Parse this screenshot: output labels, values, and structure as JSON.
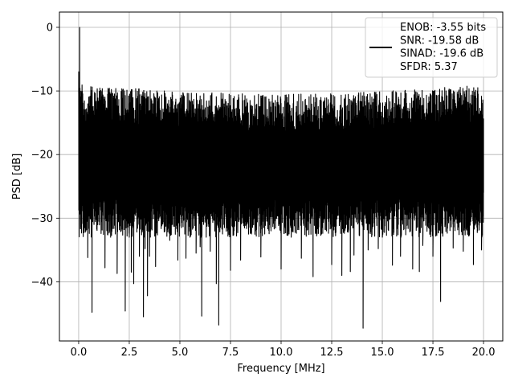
{
  "chart_data": {
    "type": "line",
    "xlabel": "Frequency [MHz]",
    "ylabel": "PSD [dB]",
    "xlim": [
      -0.95,
      20.95
    ],
    "ylim": [
      -49.3,
      2.4
    ],
    "x_ticks": [
      0.0,
      2.5,
      5.0,
      7.5,
      10.0,
      12.5,
      15.0,
      17.5,
      20.0
    ],
    "x_tick_labels": [
      "0.0",
      "2.5",
      "5.0",
      "7.5",
      "10.0",
      "12.5",
      "15.0",
      "17.5",
      "20.0"
    ],
    "y_ticks": [
      0,
      -10,
      -20,
      -30,
      -40
    ],
    "y_tick_labels": [
      "0",
      "−10",
      "−20",
      "−30",
      "−40"
    ],
    "grid": true,
    "legend_placement": "top-right",
    "line_color": "#000000",
    "legend": {
      "lines": [
        "ENOB: -3.55 bits",
        "SNR: -19.58 dB",
        "SINAD: -19.6 dB",
        "SFDR: 5.37"
      ]
    },
    "series": [
      {
        "x": [
          0.0,
          0.05,
          0.1,
          0.15,
          0.2,
          0.3,
          0.45,
          0.66,
          0.75,
          1.0,
          1.3,
          1.58,
          1.9,
          2.0,
          2.3,
          2.5,
          2.6,
          2.72,
          3.0,
          3.2,
          3.28,
          3.4,
          3.5,
          3.8,
          4.0,
          4.5,
          4.9,
          5.0,
          5.3,
          5.5,
          5.8,
          6.0,
          6.08,
          6.3,
          6.5,
          6.8,
          6.92,
          7.0,
          7.2,
          7.5,
          7.8,
          8.0,
          8.5,
          9.0,
          9.5,
          10.0,
          10.5,
          11.0,
          11.58,
          12.0,
          12.5,
          13.0,
          13.42,
          13.6,
          14.05,
          14.3,
          14.8,
          15.0,
          15.5,
          15.9,
          16.5,
          16.83,
          17.0,
          17.5,
          17.88,
          18.5,
          19.0,
          19.5,
          19.9,
          20.0
        ],
        "y": [
          -7.0,
          0.0,
          -22.0,
          -10.3,
          -25.0,
          -31.5,
          -36.2,
          -44.8,
          -26.0,
          -30.5,
          -37.8,
          -33.0,
          -38.7,
          -25.5,
          -44.6,
          -33.0,
          -38.5,
          -40.3,
          -36.0,
          -45.5,
          -34.8,
          -42.2,
          -36.0,
          -37.6,
          -28.5,
          -33.5,
          -36.6,
          -29.0,
          -36.3,
          -33.0,
          -35.5,
          -34.5,
          -45.4,
          -33.0,
          -35.2,
          -40.3,
          -46.8,
          -22.8,
          -31.5,
          -38.2,
          -32.8,
          -36.6,
          -31.0,
          -36.1,
          -32.0,
          -38.0,
          -33.0,
          -36.3,
          -39.2,
          -32.5,
          -37.3,
          -39.0,
          -38.4,
          -35.8,
          -47.3,
          -35.0,
          -34.8,
          -33.0,
          -37.4,
          -36.0,
          -38.0,
          -38.4,
          -34.3,
          -36.0,
          -43.1,
          -34.7,
          -35.2,
          -37.3,
          -35.0,
          -26.0
        ]
      }
    ]
  }
}
